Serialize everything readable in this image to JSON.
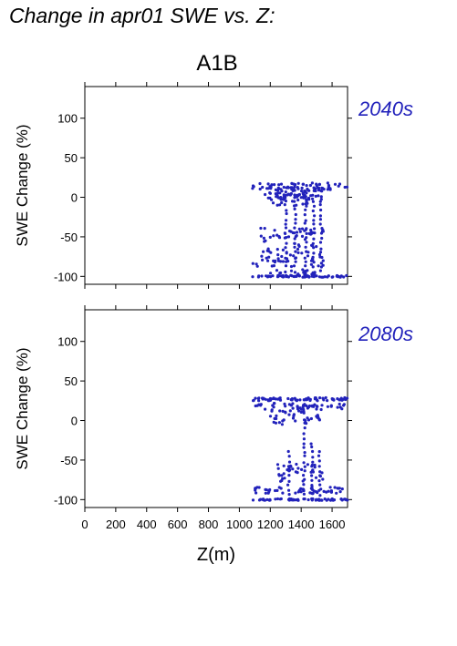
{
  "figure": {
    "title": "Change in apr01 SWE vs. Z:",
    "scenario": "A1B",
    "xlabel": "Z(m)",
    "accent_color": "#2222bb"
  },
  "chart_data": [
    {
      "type": "scatter",
      "period_label": "2040s",
      "xlabel": "",
      "ylabel": "SWE Change (%)",
      "xlim": [
        0,
        1700
      ],
      "ylim": [
        -110,
        140
      ],
      "yticks": [
        100,
        50,
        0,
        -50,
        -100
      ],
      "xticks": [
        0,
        200,
        400,
        600,
        800,
        1000,
        1200,
        1400,
        1600
      ],
      "xtick_labels_shown": false,
      "point_color": "#2222bb",
      "x_range_of_points": [
        1080,
        1700
      ],
      "bands": [
        {
          "y": 13,
          "x_from": 1080,
          "x_to": 1700,
          "spread": 5,
          "count": 60
        },
        {
          "y": 5,
          "x_from": 1150,
          "x_to": 1540,
          "spread": 8,
          "count": 50
        },
        {
          "y": -5,
          "x_from": 1200,
          "x_to": 1500,
          "spread": 6,
          "count": 25
        },
        {
          "y": -45,
          "x_from": 1120,
          "x_to": 1550,
          "spread": 6,
          "count": 30
        },
        {
          "y": -60,
          "x_from": 1150,
          "x_to": 1500,
          "spread": 12,
          "count": 25
        },
        {
          "y": -80,
          "x_from": 1080,
          "x_to": 1560,
          "spread": 8,
          "count": 35
        },
        {
          "y": -95,
          "x_from": 1200,
          "x_to": 1500,
          "spread": 4,
          "count": 20
        },
        {
          "y": -100,
          "x_from": 1080,
          "x_to": 1700,
          "spread": 1,
          "count": 55
        }
      ],
      "columns": [
        {
          "x": 1300,
          "y_from": -100,
          "y_to": 10
        },
        {
          "x": 1360,
          "y_from": -100,
          "y_to": 10
        },
        {
          "x": 1430,
          "y_from": -100,
          "y_to": 10
        },
        {
          "x": 1480,
          "y_from": -100,
          "y_to": 10
        },
        {
          "x": 1530,
          "y_from": -100,
          "y_to": 10
        }
      ]
    },
    {
      "type": "scatter",
      "period_label": "2080s",
      "xlabel": "Z(m)",
      "ylabel": "SWE Change (%)",
      "xlim": [
        0,
        1700
      ],
      "ylim": [
        -110,
        140
      ],
      "yticks": [
        100,
        50,
        0,
        -50,
        -100
      ],
      "xticks": [
        0,
        200,
        400,
        600,
        800,
        1000,
        1200,
        1400,
        1600
      ],
      "xtick_labels": [
        "0",
        "200",
        "400",
        "600",
        "800",
        "1000",
        "1200",
        "1400",
        "1600"
      ],
      "xtick_labels_shown": true,
      "point_color": "#2222bb",
      "x_range_of_points": [
        1080,
        1700
      ],
      "bands": [
        {
          "y": 27,
          "x_from": 1080,
          "x_to": 1700,
          "spread": 2,
          "count": 65
        },
        {
          "y": 18,
          "x_from": 1100,
          "x_to": 1700,
          "spread": 4,
          "count": 45
        },
        {
          "y": 5,
          "x_from": 1200,
          "x_to": 1540,
          "spread": 10,
          "count": 40
        },
        {
          "y": -60,
          "x_from": 1200,
          "x_to": 1500,
          "spread": 6,
          "count": 20
        },
        {
          "y": -70,
          "x_from": 1250,
          "x_to": 1550,
          "spread": 8,
          "count": 15
        },
        {
          "y": -88,
          "x_from": 1080,
          "x_to": 1700,
          "spread": 4,
          "count": 50
        },
        {
          "y": -100,
          "x_from": 1080,
          "x_to": 1700,
          "spread": 1,
          "count": 60
        }
      ],
      "columns": [
        {
          "x": 1320,
          "y_from": -100,
          "y_to": -40
        },
        {
          "x": 1420,
          "y_from": -100,
          "y_to": 27
        },
        {
          "x": 1470,
          "y_from": -100,
          "y_to": -30
        },
        {
          "x": 1520,
          "y_from": -100,
          "y_to": -40
        }
      ]
    }
  ]
}
